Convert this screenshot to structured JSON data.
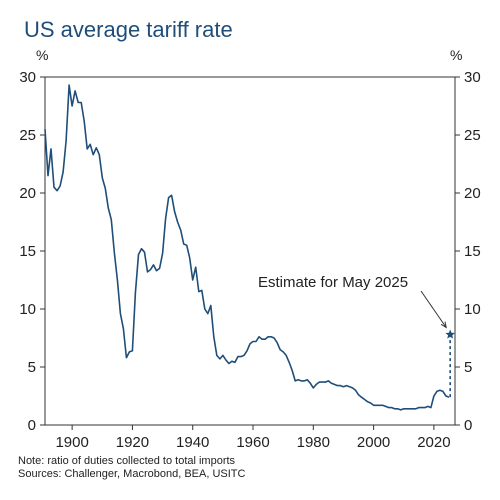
{
  "chart_data": {
    "type": "line",
    "title": "US average tariff rate",
    "y_unit_label": "%",
    "xlabel": "",
    "ylabel": "",
    "xlim": [
      1891,
      2027
    ],
    "ylim": [
      0,
      30
    ],
    "x_ticks": [
      1900,
      1920,
      1940,
      1960,
      1980,
      2000,
      2020
    ],
    "y_ticks": [
      0,
      5,
      10,
      15,
      20,
      25,
      30
    ],
    "grid": false,
    "line_color": "#1f4e79",
    "series": [
      {
        "values": [
          [
            1891,
            25.5
          ],
          [
            1892,
            21.5
          ],
          [
            1893,
            23.8
          ],
          [
            1894,
            20.5
          ],
          [
            1895,
            20.2
          ],
          [
            1896,
            20.6
          ],
          [
            1897,
            21.8
          ],
          [
            1898,
            24.5
          ],
          [
            1899,
            29.3
          ],
          [
            1900,
            27.5
          ],
          [
            1901,
            28.8
          ],
          [
            1902,
            27.8
          ],
          [
            1903,
            27.8
          ],
          [
            1904,
            26.2
          ],
          [
            1905,
            23.8
          ],
          [
            1906,
            24.2
          ],
          [
            1907,
            23.3
          ],
          [
            1908,
            23.9
          ],
          [
            1909,
            23.3
          ],
          [
            1910,
            21.3
          ],
          [
            1911,
            20.4
          ],
          [
            1912,
            18.7
          ],
          [
            1913,
            17.7
          ],
          [
            1914,
            14.9
          ],
          [
            1915,
            12.5
          ],
          [
            1916,
            9.6
          ],
          [
            1917,
            8.3
          ],
          [
            1918,
            5.8
          ],
          [
            1919,
            6.3
          ],
          [
            1920,
            6.4
          ],
          [
            1921,
            11.4
          ],
          [
            1922,
            14.7
          ],
          [
            1923,
            15.2
          ],
          [
            1924,
            14.9
          ],
          [
            1925,
            13.2
          ],
          [
            1926,
            13.4
          ],
          [
            1927,
            13.8
          ],
          [
            1928,
            13.3
          ],
          [
            1929,
            13.5
          ],
          [
            1930,
            14.8
          ],
          [
            1931,
            17.8
          ],
          [
            1932,
            19.6
          ],
          [
            1933,
            19.8
          ],
          [
            1934,
            18.4
          ],
          [
            1935,
            17.5
          ],
          [
            1936,
            16.8
          ],
          [
            1937,
            15.6
          ],
          [
            1938,
            15.5
          ],
          [
            1939,
            14.4
          ],
          [
            1940,
            12.5
          ],
          [
            1941,
            13.6
          ],
          [
            1942,
            11.5
          ],
          [
            1943,
            11.6
          ],
          [
            1944,
            10.0
          ],
          [
            1945,
            9.6
          ],
          [
            1946,
            10.3
          ],
          [
            1947,
            7.6
          ],
          [
            1948,
            6.0
          ],
          [
            1949,
            5.7
          ],
          [
            1950,
            6.0
          ],
          [
            1951,
            5.6
          ],
          [
            1952,
            5.3
          ],
          [
            1953,
            5.5
          ],
          [
            1954,
            5.4
          ],
          [
            1955,
            5.9
          ],
          [
            1956,
            5.9
          ],
          [
            1957,
            6.0
          ],
          [
            1958,
            6.4
          ],
          [
            1959,
            7.0
          ],
          [
            1960,
            7.2
          ],
          [
            1961,
            7.2
          ],
          [
            1962,
            7.6
          ],
          [
            1963,
            7.4
          ],
          [
            1964,
            7.4
          ],
          [
            1965,
            7.6
          ],
          [
            1966,
            7.6
          ],
          [
            1967,
            7.5
          ],
          [
            1968,
            7.1
          ],
          [
            1969,
            6.5
          ],
          [
            1970,
            6.3
          ],
          [
            1971,
            6.0
          ],
          [
            1972,
            5.4
          ],
          [
            1973,
            4.7
          ],
          [
            1974,
            3.8
          ],
          [
            1975,
            3.9
          ],
          [
            1976,
            3.8
          ],
          [
            1977,
            3.8
          ],
          [
            1978,
            3.9
          ],
          [
            1979,
            3.6
          ],
          [
            1980,
            3.2
          ],
          [
            1981,
            3.5
          ],
          [
            1982,
            3.7
          ],
          [
            1983,
            3.7
          ],
          [
            1984,
            3.7
          ],
          [
            1985,
            3.8
          ],
          [
            1986,
            3.6
          ],
          [
            1987,
            3.5
          ],
          [
            1988,
            3.4
          ],
          [
            1989,
            3.4
          ],
          [
            1990,
            3.3
          ],
          [
            1991,
            3.4
          ],
          [
            1992,
            3.3
          ],
          [
            1993,
            3.2
          ],
          [
            1994,
            3.0
          ],
          [
            1995,
            2.6
          ],
          [
            1996,
            2.4
          ],
          [
            1997,
            2.2
          ],
          [
            1998,
            2.0
          ],
          [
            1999,
            1.9
          ],
          [
            2000,
            1.7
          ],
          [
            2001,
            1.7
          ],
          [
            2002,
            1.7
          ],
          [
            2003,
            1.7
          ],
          [
            2004,
            1.6
          ],
          [
            2005,
            1.5
          ],
          [
            2006,
            1.5
          ],
          [
            2007,
            1.4
          ],
          [
            2008,
            1.4
          ],
          [
            2009,
            1.3
          ],
          [
            2010,
            1.4
          ],
          [
            2011,
            1.4
          ],
          [
            2012,
            1.4
          ],
          [
            2013,
            1.4
          ],
          [
            2014,
            1.4
          ],
          [
            2015,
            1.5
          ],
          [
            2016,
            1.5
          ],
          [
            2017,
            1.5
          ],
          [
            2018,
            1.6
          ],
          [
            2019,
            1.5
          ],
          [
            2020,
            2.5
          ],
          [
            2021,
            2.9
          ],
          [
            2022,
            3.0
          ],
          [
            2023,
            2.9
          ],
          [
            2024,
            2.5
          ],
          [
            2025,
            2.4
          ]
        ]
      }
    ],
    "estimate": {
      "x": 2025.4,
      "y": 7.8,
      "label": "Estimate for May 2025",
      "marker": "star"
    },
    "notes": [
      "Note: ratio of duties collected to total imports",
      "Sources: Challenger, Macrobond, BEA, USITC"
    ]
  }
}
